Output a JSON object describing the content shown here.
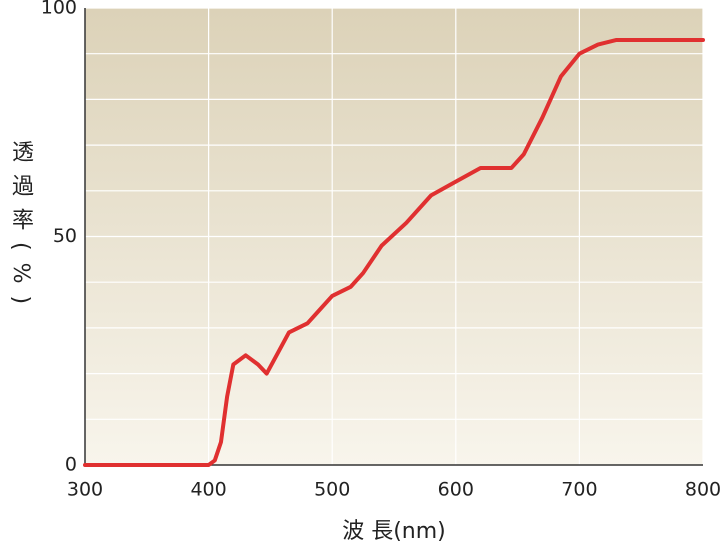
{
  "chart_data": {
    "type": "line",
    "x_label": "波 長(nm)",
    "y_label": "透過率(%)",
    "x": [
      300,
      400,
      405,
      410,
      415,
      420,
      430,
      440,
      447,
      455,
      465,
      480,
      490,
      500,
      515,
      525,
      540,
      560,
      580,
      600,
      620,
      635,
      645,
      655,
      670,
      685,
      700,
      715,
      730,
      750,
      800
    ],
    "series": [
      {
        "name": "透過率",
        "color": "#e03030",
        "values": [
          0,
          0,
          1,
          5,
          15,
          22,
          24,
          22,
          20,
          24,
          29,
          31,
          34,
          37,
          39,
          42,
          48,
          53,
          59,
          62,
          65,
          65,
          65,
          68,
          76,
          85,
          90,
          92,
          93,
          93,
          93
        ]
      }
    ],
    "xlim": [
      300,
      800
    ],
    "xticks": [
      300,
      400,
      500,
      600,
      700,
      800
    ],
    "ylim": [
      0,
      100
    ],
    "yticks": [
      0,
      50,
      100
    ],
    "y_minor_ticks": [
      10,
      20,
      30,
      40,
      60,
      70,
      80,
      90
    ],
    "grid": true
  }
}
